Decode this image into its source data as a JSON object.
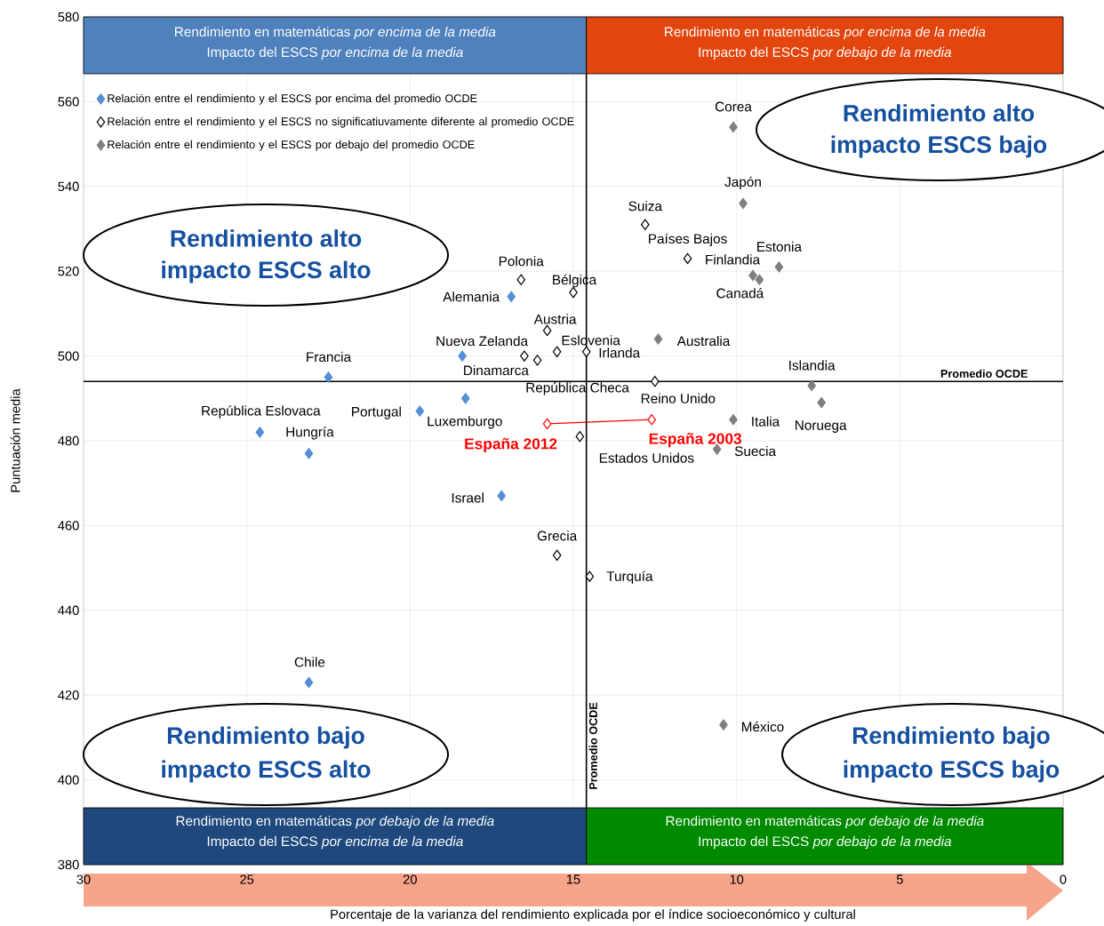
{
  "chart_data": {
    "type": "scatter",
    "xlabel": "Porcentaje de la varianza del rendimiento explicada por el índice socioeconómico y cultural",
    "ylabel": "Puntuación media",
    "xlim": [
      30,
      0
    ],
    "xticks": [
      30,
      25,
      20,
      15,
      10,
      5,
      0
    ],
    "ylim": [
      380,
      580
    ],
    "yticks": [
      380,
      400,
      420,
      440,
      460,
      480,
      500,
      520,
      540,
      560,
      580
    ],
    "grid": true,
    "legend": "top left",
    "marker": "diamond",
    "series": [
      {
        "name": "Relación entre el rendimiento y el ESCS por encima del promedio OCDE",
        "color": "#558ed5",
        "x": [
          16.9,
          18.4,
          22.5,
          18.3,
          19.7,
          24.6,
          23.1,
          17.2,
          23.1
        ],
        "values": [
          514,
          500,
          495,
          490,
          487,
          482,
          477,
          467,
          423
        ]
      },
      {
        "name": "Relación entre el rendimiento y el ESCS no significatiuvamente  diferente al promedio OCDE",
        "color": "#000000",
        "x": [
          16.6,
          15.0,
          12.8,
          11.5,
          15.8,
          15.5,
          16.5,
          14.6,
          16.1,
          12.5,
          14.8,
          15.5,
          14.5
        ],
        "values": [
          518,
          515,
          531,
          523,
          506,
          501,
          500,
          501,
          499,
          494,
          481,
          453,
          448
        ]
      },
      {
        "name": "Relación entre el rendimiento y el ESCS por debajo del promedio OCDE",
        "color": "#7f7f7f",
        "x": [
          10.1,
          9.8,
          8.7,
          9.5,
          9.3,
          12.4,
          7.7,
          7.4,
          10.1,
          10.6,
          10.4
        ],
        "values": [
          554,
          536,
          521,
          519,
          518,
          504,
          493,
          489,
          485,
          478,
          413
        ]
      },
      {
        "type": "line",
        "color": "#ff0000",
        "x": [
          12.6,
          15.8
        ],
        "values": [
          485,
          484
        ]
      }
    ],
    "ref_lines": [
      {
        "axis": "x",
        "value": 14.6,
        "label": "Promedio OCDE",
        "color": "#000000"
      },
      {
        "axis": "y",
        "value": 494,
        "label": "Promedio OCDE",
        "color": "#000000"
      }
    ],
    "annotations": [
      {
        "text": "Corea",
        "x": 10.1,
        "y": 554
      },
      {
        "text": "Japón",
        "x": 9.8,
        "y": 536
      },
      {
        "text": "Suiza",
        "x": 12.8,
        "y": 531
      },
      {
        "text": "Países Bajos",
        "x": 11.5,
        "y": 523
      },
      {
        "text": "Estonia",
        "x": 8.7,
        "y": 521
      },
      {
        "text": "Finlandia",
        "x": 9.5,
        "y": 519
      },
      {
        "text": "Canadá",
        "x": 9.3,
        "y": 518
      },
      {
        "text": "Polonia",
        "x": 16.6,
        "y": 518
      },
      {
        "text": "Bélgica",
        "x": 15.0,
        "y": 515
      },
      {
        "text": "Alemania",
        "x": 16.9,
        "y": 514
      },
      {
        "text": "Austria",
        "x": 15.8,
        "y": 506
      },
      {
        "text": "Nueva Zelanda",
        "x": 18.4,
        "y": 500
      },
      {
        "text": "Eslovenia",
        "x": 15.5,
        "y": 501
      },
      {
        "text": "Dinamarca",
        "x": 16.5,
        "y": 500
      },
      {
        "text": "Irlanda",
        "x": 14.6,
        "y": 501
      },
      {
        "text": "República Checa",
        "x": 16.1,
        "y": 499
      },
      {
        "text": "Australia",
        "x": 12.4,
        "y": 504
      },
      {
        "text": "Francia",
        "x": 22.5,
        "y": 495
      },
      {
        "text": "Islandia",
        "x": 7.7,
        "y": 493
      },
      {
        "text": "Reino Unido",
        "x": 12.5,
        "y": 494
      },
      {
        "text": "Portugal",
        "x": 19.7,
        "y": 487
      },
      {
        "text": "Luxemburgo",
        "x": 18.3,
        "y": 490
      },
      {
        "text": "República Eslovaca",
        "x": 24.6,
        "y": 482
      },
      {
        "text": "Hungría",
        "x": 23.1,
        "y": 477
      },
      {
        "text": "Italia",
        "x": 10.1,
        "y": 485
      },
      {
        "text": "Noruega",
        "x": 7.4,
        "y": 489
      },
      {
        "text": "Suecia",
        "x": 10.6,
        "y": 478
      },
      {
        "text": "Estados Unidos",
        "x": 14.8,
        "y": 481
      },
      {
        "text": "España 2012",
        "x": 15.8,
        "y": 484
      },
      {
        "text": "España 2003",
        "x": 12.6,
        "y": 485
      },
      {
        "text": "Israel",
        "x": 17.2,
        "y": 467
      },
      {
        "text": "Grecia",
        "x": 15.5,
        "y": 453
      },
      {
        "text": "Turquía",
        "x": 14.5,
        "y": 448
      },
      {
        "text": "Chile",
        "x": 23.1,
        "y": 423
      },
      {
        "text": "México",
        "x": 10.4,
        "y": 413
      },
      "Rendimiento en matemáticas *por encima de la media*",
      "Impacto del ESCS *por encima de la media*",
      "Rendimiento en matemáticas *por encima de la media*",
      "Impacto del ESCS *por debajo de la media*",
      "Rendimiento en matemáticas *por debajo de la media*",
      "Impacto del ESCS *por encima de la media*",
      "Rendimiento en matemáticas *por debajo de la media*",
      "Impacto del ESCS *por debajo de la media*",
      "Rendimiento alto",
      "impacto ESCS alto",
      "Rendimiento alto",
      "impacto ESCS bajo",
      "Rendimiento bajo",
      "impacto ESCS alto",
      "Rendimiento bajo",
      "impacto ESCS bajo"
    ]
  }
}
